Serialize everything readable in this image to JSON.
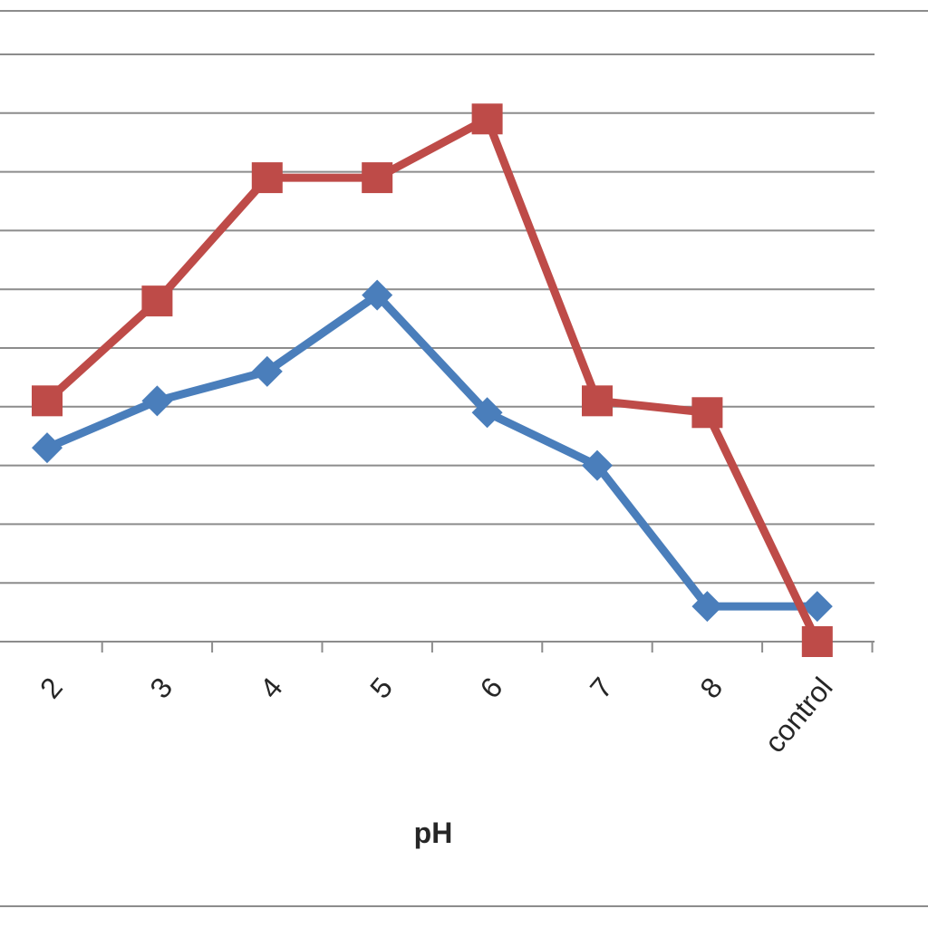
{
  "chart_data": {
    "type": "line",
    "title": "",
    "xlabel": "pH",
    "ylabel": "",
    "categories": [
      "2",
      "3",
      "4",
      "5",
      "6",
      "7",
      "8",
      "control"
    ],
    "series": [
      {
        "color": "#4a7ebb",
        "marker": "diamond",
        "values": [
          3.3,
          4.1,
          4.6,
          5.9,
          3.9,
          3.0,
          0.6,
          0.6
        ]
      },
      {
        "color": "#be4b48",
        "marker": "square",
        "values": [
          4.1,
          5.8,
          7.9,
          7.9,
          8.9,
          4.1,
          3.9,
          0.0
        ]
      }
    ],
    "ylim": [
      0,
      10
    ],
    "y_gridlines": 11,
    "grid": true,
    "legend": "none"
  }
}
